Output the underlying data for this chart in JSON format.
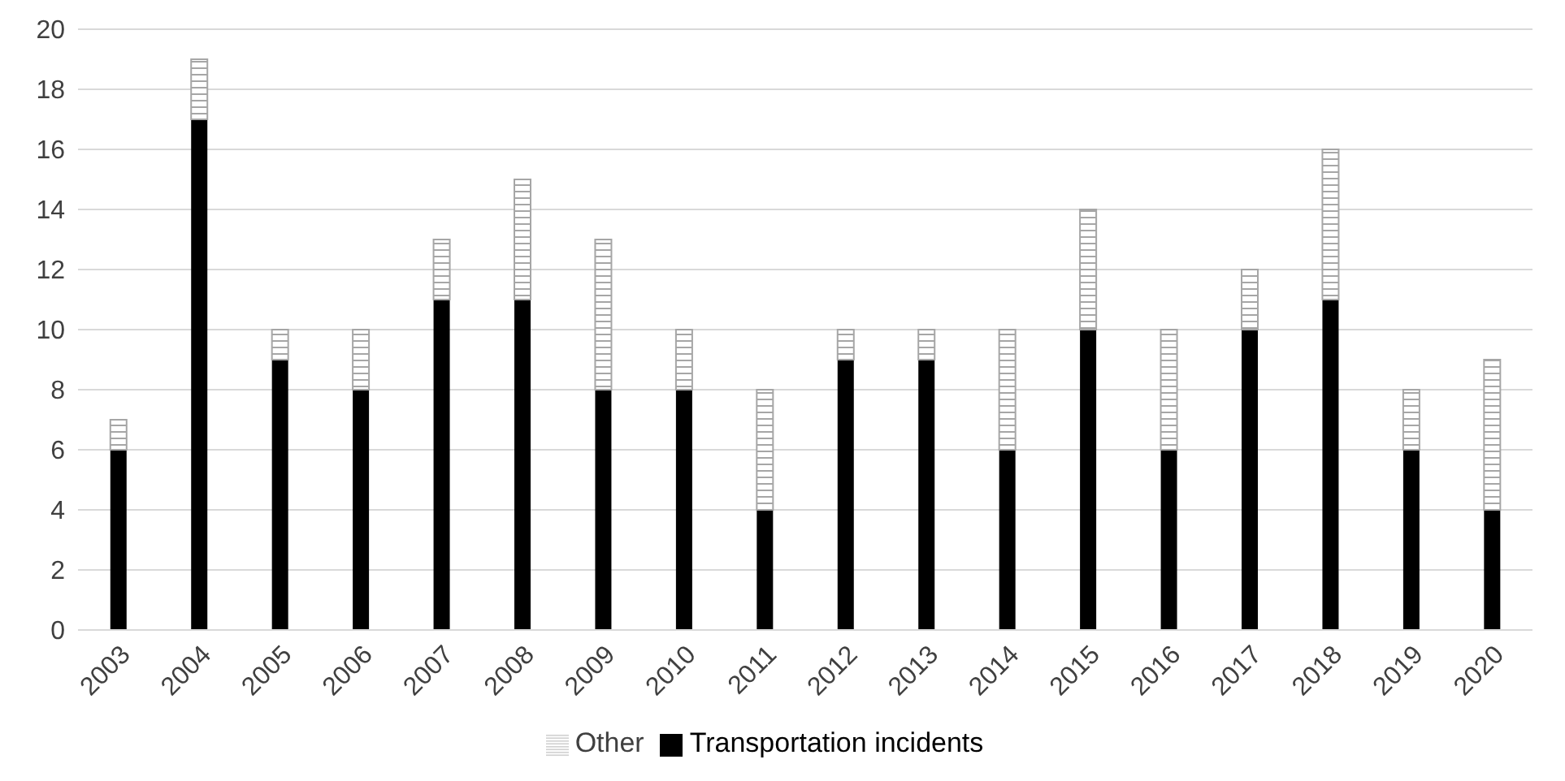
{
  "chart_data": {
    "type": "bar",
    "stacked": true,
    "categories": [
      "2003",
      "2004",
      "2005",
      "2006",
      "2007",
      "2008",
      "2009",
      "2010",
      "2011",
      "2012",
      "2013",
      "2014",
      "2015",
      "2016",
      "2017",
      "2018",
      "2019",
      "2020"
    ],
    "series": [
      {
        "name": "Transportation incidents",
        "color": "#000000",
        "values": [
          6,
          17,
          9,
          8,
          11,
          11,
          8,
          8,
          4,
          9,
          9,
          6,
          10,
          6,
          10,
          11,
          6,
          4
        ]
      },
      {
        "name": "Other",
        "color": "#a6a6a6",
        "values": [
          1,
          2,
          1,
          2,
          2,
          4,
          5,
          2,
          4,
          1,
          1,
          4,
          4,
          4,
          2,
          5,
          2,
          5
        ]
      }
    ],
    "ylim": [
      0,
      20
    ],
    "yticks": [
      0,
      2,
      4,
      6,
      8,
      10,
      12,
      14,
      16,
      18,
      20
    ],
    "grid": "y",
    "legend": "bottom"
  }
}
